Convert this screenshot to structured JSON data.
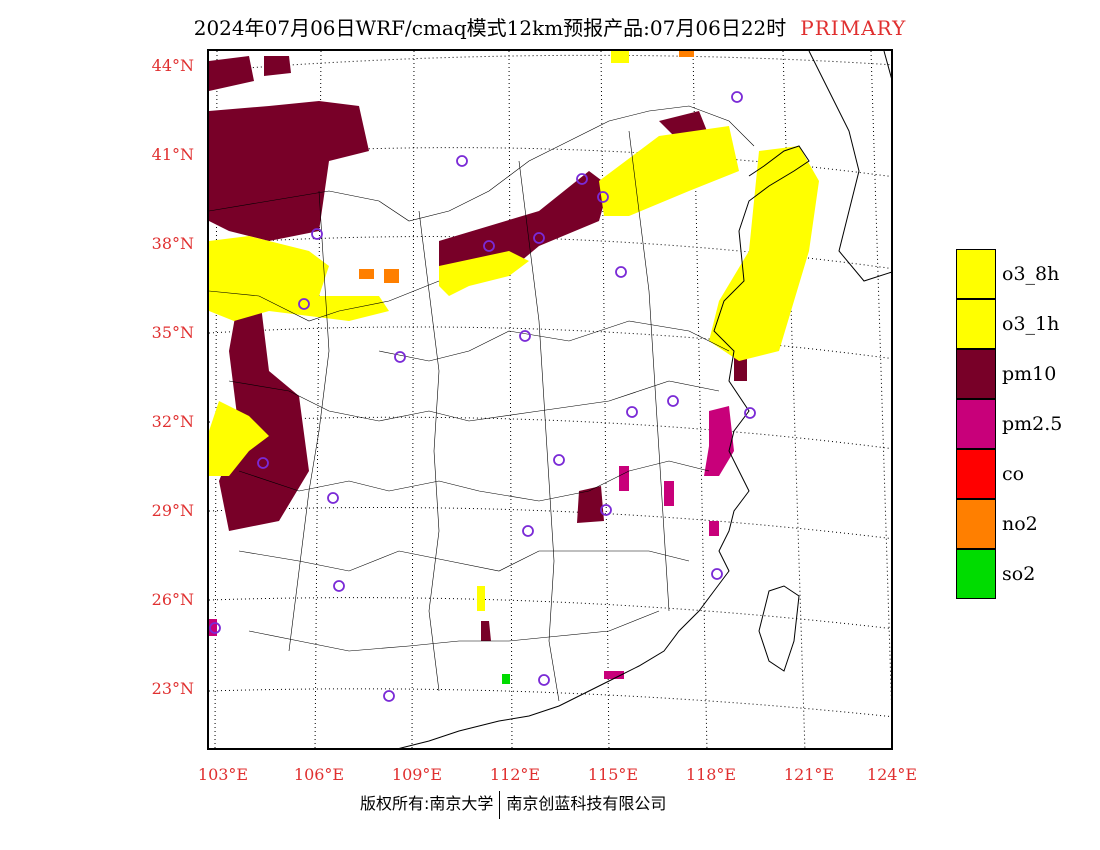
{
  "header": {
    "title": "2024年07月06日WRF/cmaq模式12km预报产品:07月06日22时",
    "badge": "PRIMARY"
  },
  "axes": {
    "lat_labels": [
      "44°N",
      "41°N",
      "38°N",
      "35°N",
      "32°N",
      "29°N",
      "26°N",
      "23°N"
    ],
    "lon_labels": [
      "103°E",
      "106°E",
      "109°E",
      "112°E",
      "115°E",
      "118°E",
      "121°E",
      "124°E"
    ]
  },
  "legend": {
    "items": [
      {
        "label": "o3_8h",
        "color": "#ffff00"
      },
      {
        "label": "o3_1h",
        "color": "#ffff00"
      },
      {
        "label": "pm10",
        "color": "#780028"
      },
      {
        "label": "pm2.5",
        "color": "#c8007a"
      },
      {
        "label": "co",
        "color": "#ff0000"
      },
      {
        "label": "no2",
        "color": "#ff7f00"
      },
      {
        "label": "so2",
        "color": "#00dc00"
      }
    ]
  },
  "footer": {
    "copyright_left": "版权所有:南京大学",
    "copyright_right": "南京创蓝科技有限公司"
  },
  "colors": {
    "axis_label": "#e03030",
    "station_marker": "#7a2ad6",
    "o3": "#ffff00",
    "pm10": "#780028",
    "pm25": "#c8007a",
    "no2": "#ff7f00",
    "so2": "#00dc00"
  }
}
